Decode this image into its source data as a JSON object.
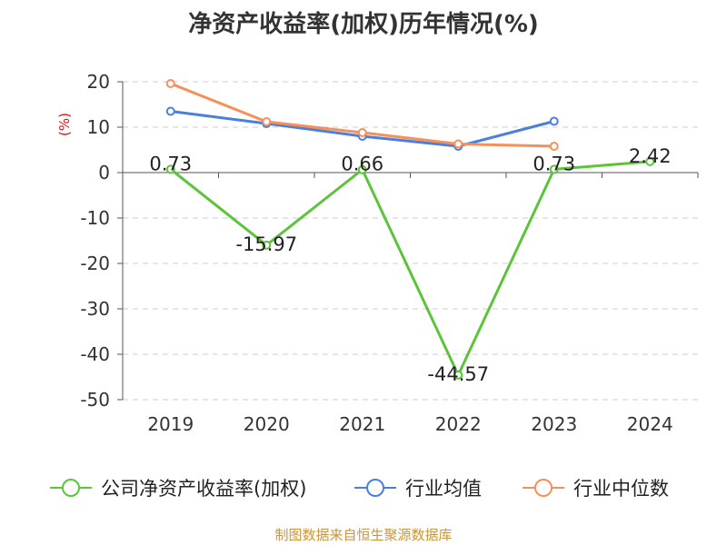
{
  "chart_data": {
    "type": "line",
    "title": "净资产收益率(加权)历年情况(%)",
    "ylabel": "(%)",
    "categories": [
      "2019",
      "2020",
      "2021",
      "2022",
      "2023",
      "2024"
    ],
    "ylim": [
      -50,
      20
    ],
    "yticks": [
      20,
      10,
      0,
      -10,
      -20,
      -30,
      -40,
      -50
    ],
    "grid": true,
    "legend_position": "bottom",
    "series": [
      {
        "name": "公司净资产收益率(加权)",
        "color": "#5cc43a",
        "values": [
          0.73,
          -15.97,
          0.66,
          -44.57,
          0.73,
          2.42
        ],
        "labels": [
          "0.73",
          "-15.97",
          "0.66",
          "-44.57",
          "0.73",
          "2.42"
        ]
      },
      {
        "name": "行业均值",
        "color": "#4a7fe0",
        "values": [
          13.5,
          10.8,
          8.0,
          5.8,
          11.3,
          null
        ]
      },
      {
        "name": "行业中位数",
        "color": "#f5905a",
        "values": [
          19.6,
          11.2,
          8.8,
          6.3,
          5.8,
          null
        ]
      }
    ]
  },
  "source": "制图数据来自恒生聚源数据库"
}
